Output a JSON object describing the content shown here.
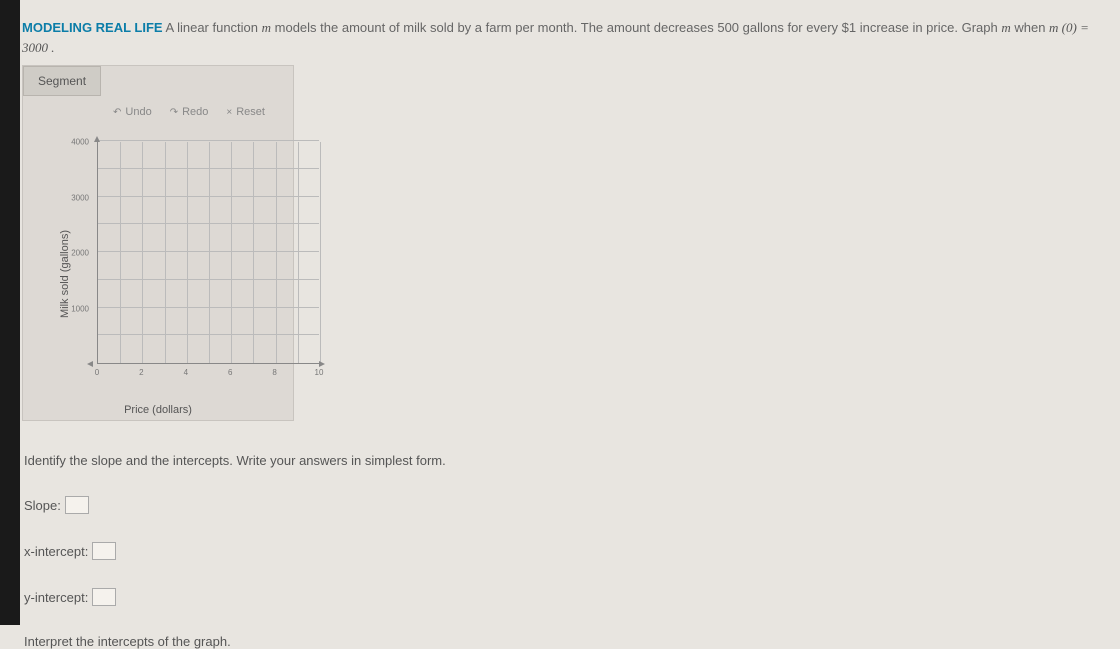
{
  "heading": {
    "label": "MODELING REAL LIFE",
    "text_1": "A linear function ",
    "var_1": "m",
    "text_2": " models the amount of milk sold by a farm per month. The amount decreases 500 gallons for every $1 increase in price. Graph ",
    "var_2": "m",
    "text_3": " when ",
    "eq": "m (0) = 3000 ."
  },
  "tools": {
    "segment": "Segment",
    "undo": "Undo",
    "redo": "Redo",
    "reset": "Reset"
  },
  "chart": {
    "type": "line-grid",
    "xlabel": "Price (dollars)",
    "ylabel": "Milk sold (gallons)",
    "xlim": [
      0,
      10
    ],
    "ylim": [
      0,
      4000
    ],
    "xticks": [
      0,
      2,
      4,
      6,
      8,
      10
    ],
    "yticks": [
      1000,
      2000,
      3000,
      4000
    ],
    "x_grid_step": 1,
    "y_grid_step": 500,
    "grid_color": "#bbbbbb",
    "axis_color": "#888888",
    "background_color": "#ddd9d4",
    "tick_fontsize": 8,
    "label_fontsize": 11
  },
  "questions": {
    "instr": "Identify the slope and the intercepts. Write your answers in simplest form.",
    "slope_label": "Slope:",
    "xint_label": "x-intercept:",
    "yint_label": "y-intercept:",
    "interpret": "Interpret the intercepts of the graph."
  }
}
